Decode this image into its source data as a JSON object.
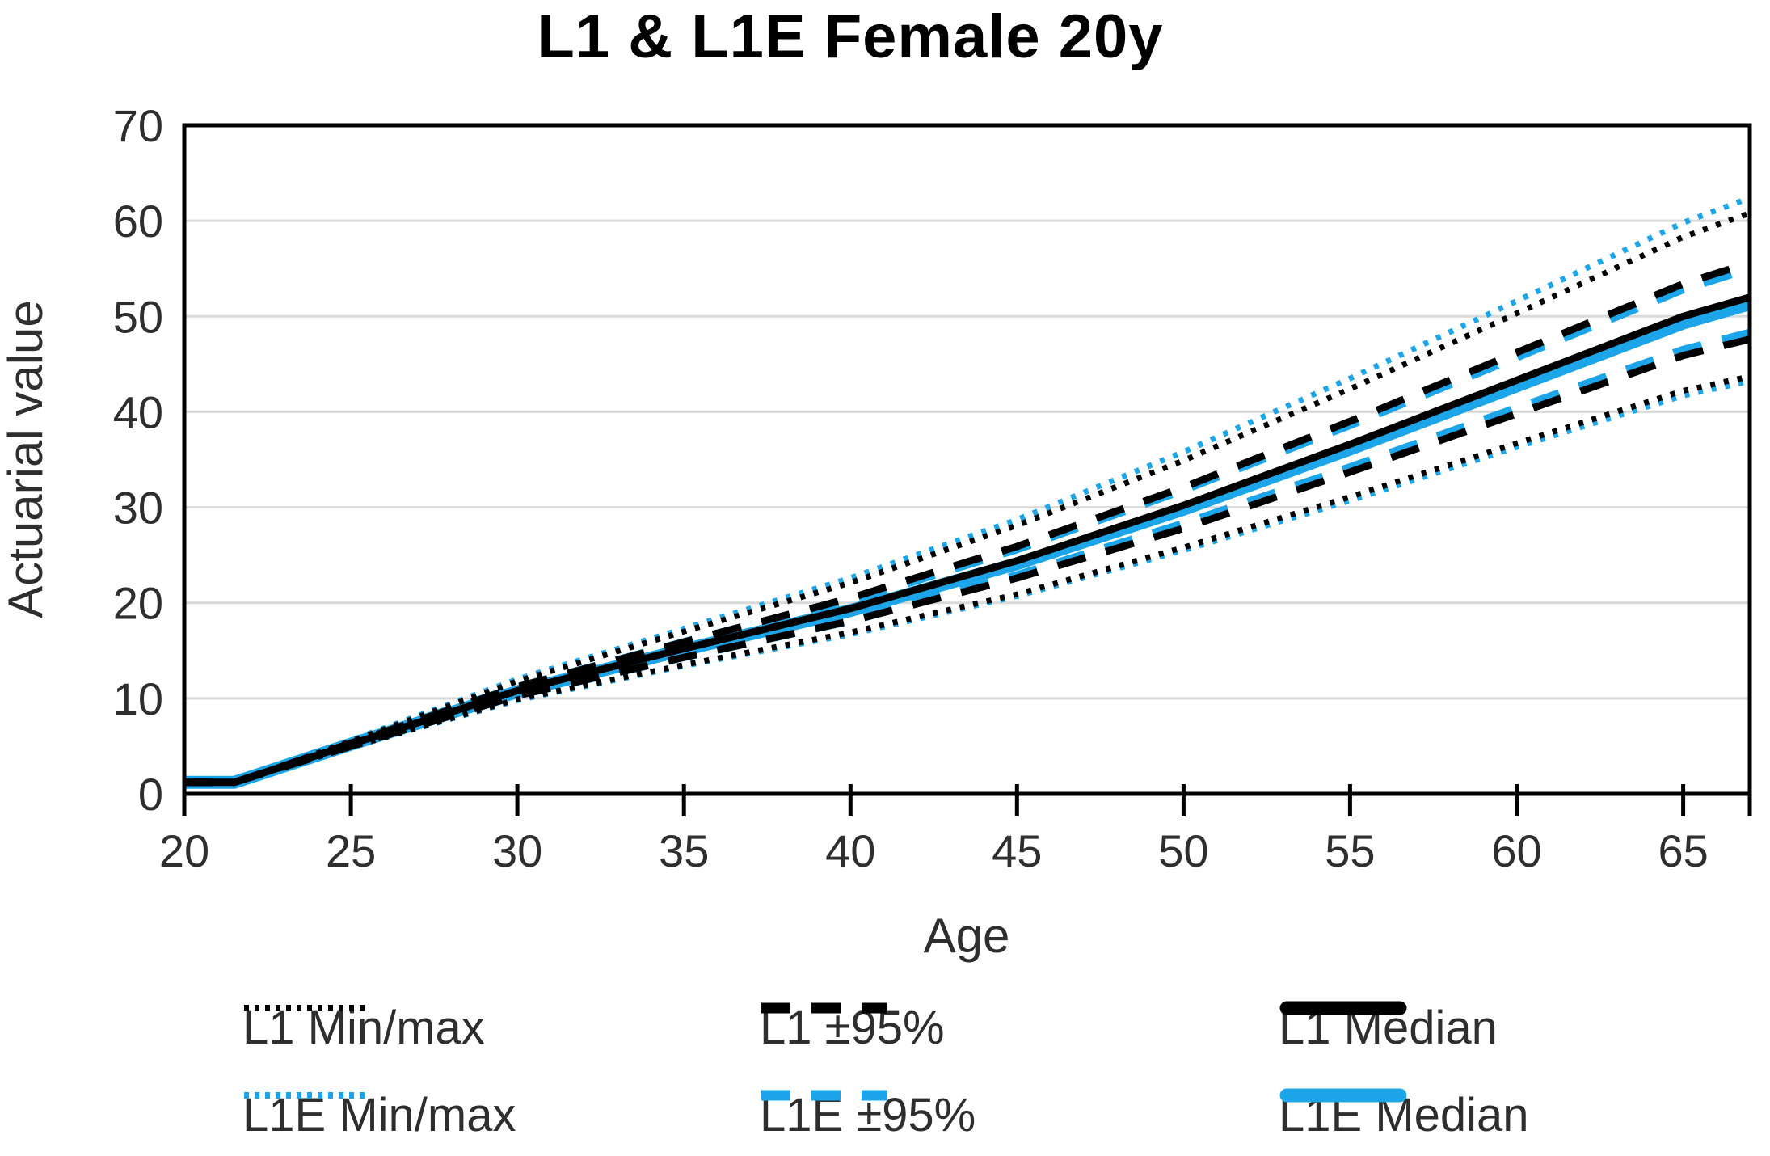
{
  "title": "L1 & L1E Female 20y",
  "axes": {
    "x_label": "Age",
    "y_label": "Actuarial value",
    "x_ticks": [
      20,
      25,
      30,
      35,
      40,
      45,
      50,
      55,
      60,
      65
    ],
    "y_ticks": [
      0,
      10,
      20,
      30,
      40,
      50,
      60,
      70
    ],
    "x_range": [
      20,
      67
    ],
    "y_range": [
      0,
      70
    ]
  },
  "colors": {
    "l1": "#000000",
    "l1e": "#1CA6E9",
    "grid": "#D9D9D9",
    "axis": "#000000",
    "text": "#2E2E2E"
  },
  "legend": {
    "rows": [
      [
        {
          "label": "L1 Min/max",
          "pattern": "dotted",
          "color": "l1"
        },
        {
          "label": "L1 ±95%",
          "pattern": "dashed",
          "color": "l1"
        },
        {
          "label": "L1 Median",
          "pattern": "solid",
          "color": "l1"
        }
      ],
      [
        {
          "label": "L1E Min/max",
          "pattern": "dotted",
          "color": "l1e"
        },
        {
          "label": "L1E ±95%",
          "pattern": "dashed",
          "color": "l1e"
        },
        {
          "label": "L1E Median",
          "pattern": "solid",
          "color": "l1e"
        }
      ]
    ]
  },
  "chart_data": {
    "type": "line",
    "title": "L1 & L1E Female 20y",
    "xlabel": "Age",
    "ylabel": "Actuarial value",
    "xlim": [
      20,
      67
    ],
    "ylim": [
      0,
      70
    ],
    "grid": "horizontal-only",
    "legend_position": "bottom",
    "x": [
      20,
      21.5,
      25,
      30,
      35,
      40,
      45,
      50,
      55,
      60,
      65,
      67
    ],
    "series": [
      {
        "id": "l1e-max",
        "name": "L1E Max",
        "group": "L1E Min/max",
        "color": "l1e",
        "style": "dotted",
        "width": 7,
        "values": [
          1.2,
          1.2,
          5.6,
          12.0,
          17.3,
          22.6,
          28.7,
          35.8,
          43.5,
          51.6,
          59.8,
          62.4
        ]
      },
      {
        "id": "l1e-min",
        "name": "L1E Min",
        "group": "L1E Min/max",
        "color": "l1e",
        "style": "dotted",
        "width": 7,
        "values": [
          1.2,
          1.2,
          4.9,
          9.8,
          13.4,
          16.7,
          20.7,
          25.5,
          30.7,
          36.3,
          41.7,
          43.2
        ]
      },
      {
        "id": "l1e-p95-upper",
        "name": "L1E +95%",
        "group": "L1E ±95%",
        "color": "l1e",
        "style": "dashed",
        "width": 12,
        "values": [
          1.2,
          1.2,
          5.3,
          11.1,
          15.8,
          20.3,
          25.7,
          31.9,
          38.7,
          45.8,
          52.9,
          55.1
        ]
      },
      {
        "id": "l1e-p95-lower",
        "name": "L1E -95%",
        "group": "L1E ±95%",
        "color": "l1e",
        "style": "dashed",
        "width": 12,
        "values": [
          1.2,
          1.2,
          5.1,
          10.4,
          14.4,
          18.2,
          22.8,
          28.2,
          34.1,
          40.3,
          46.4,
          48.2
        ]
      },
      {
        "id": "l1e-median",
        "name": "L1E Median",
        "group": "L1E Median",
        "color": "l1e",
        "style": "solid",
        "width": 16,
        "values": [
          1.2,
          1.2,
          5.2,
          10.7,
          15.1,
          19.2,
          24.1,
          29.8,
          36.1,
          42.7,
          49.3,
          51.3
        ]
      },
      {
        "id": "l1-max",
        "name": "L1 Max",
        "group": "L1 Min/max",
        "color": "l1",
        "style": "dotted",
        "width": 7,
        "values": [
          1.2,
          1.2,
          5.5,
          11.8,
          17.0,
          22.1,
          28.1,
          34.9,
          42.4,
          50.3,
          58.3,
          60.8
        ]
      },
      {
        "id": "l1-min",
        "name": "L1 Min",
        "group": "L1 Min/max",
        "color": "l1",
        "style": "dotted",
        "width": 7,
        "values": [
          1.2,
          1.2,
          4.9,
          9.9,
          13.5,
          16.9,
          20.9,
          25.8,
          31.1,
          36.7,
          42.2,
          43.7
        ]
      },
      {
        "id": "l1-p95-upper",
        "name": "L1 +95%",
        "group": "L1 ±95%",
        "color": "l1",
        "style": "dashed",
        "width": 9,
        "values": [
          1.2,
          1.2,
          5.3,
          11.2,
          15.9,
          20.5,
          25.9,
          32.1,
          39.0,
          46.2,
          53.4,
          55.6
        ]
      },
      {
        "id": "l1-p95-lower",
        "name": "L1 -95%",
        "group": "L1 ±95%",
        "color": "l1",
        "style": "dashed",
        "width": 9,
        "values": [
          1.2,
          1.2,
          5.0,
          10.3,
          14.3,
          18.1,
          22.6,
          27.8,
          33.7,
          39.8,
          45.9,
          47.6
        ]
      },
      {
        "id": "l1-median",
        "name": "L1 Median",
        "group": "L1 Median",
        "color": "l1",
        "style": "solid",
        "width": 9,
        "values": [
          1.2,
          1.2,
          5.2,
          10.8,
          15.2,
          19.4,
          24.4,
          30.2,
          36.6,
          43.3,
          50.0,
          52.0
        ]
      }
    ]
  }
}
